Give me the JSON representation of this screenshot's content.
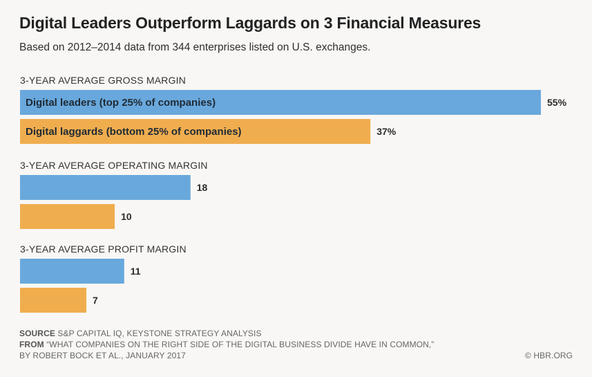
{
  "title": "Digital Leaders Outperform Laggards on 3 Financial Measures",
  "subtitle": "Based on 2012–2014 data from 344 enterprises listed on U.S. exchanges.",
  "colors": {
    "leaders": "#69a8dc",
    "laggards": "#f0ad4e",
    "text": "#2b2b2b"
  },
  "chart_data": {
    "type": "bar",
    "orientation": "horizontal",
    "title": "Digital Leaders Outperform Laggards on 3 Financial Measures",
    "groups": [
      {
        "label": "3-YEAR AVERAGE GROSS MARGIN",
        "values": [
          55,
          37
        ],
        "value_labels": [
          "55%",
          "37%"
        ],
        "bar_labels": [
          "Digital leaders (top 25% of companies)",
          "Digital laggards (bottom 25% of companies)"
        ]
      },
      {
        "label": "3-YEAR AVERAGE OPERATING MARGIN",
        "values": [
          18,
          10
        ],
        "value_labels": [
          "18",
          "10"
        ],
        "bar_labels": [
          "",
          ""
        ]
      },
      {
        "label": "3-YEAR AVERAGE PROFIT MARGIN",
        "values": [
          11,
          7
        ],
        "value_labels": [
          "11",
          "7"
        ],
        "bar_labels": [
          "",
          ""
        ]
      }
    ],
    "series": [
      {
        "name": "Digital leaders (top 25% of companies)"
      },
      {
        "name": "Digital laggards (bottom 25% of companies)"
      }
    ],
    "xlim": [
      0,
      55
    ]
  },
  "footer": {
    "source_label": "SOURCE",
    "source_text": "S&P CAPITAL IQ, KEYSTONE STRATEGY ANALYSIS",
    "from_label": "FROM",
    "from_text": "“WHAT COMPANIES ON THE RIGHT SIDE OF THE DIGITAL BUSINESS DIVIDE HAVE IN COMMON,”",
    "byline": "BY ROBERT BOCK ET AL., JANUARY 2017",
    "credit": "© HBR.ORG"
  }
}
